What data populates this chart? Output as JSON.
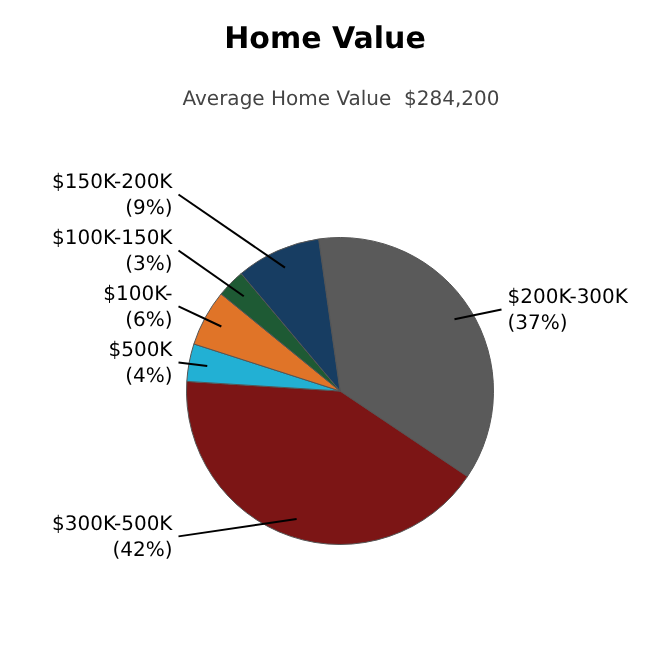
{
  "chart_data": {
    "type": "pie",
    "title": "Home Value",
    "subtitle": "Average Home Value  $284,200",
    "categories": [
      "$200K-300K",
      "$300K-500K",
      "$500K",
      "$100K-",
      "$100K-150K",
      "$150K-200K"
    ],
    "values": [
      37,
      42,
      4,
      6,
      3,
      9
    ],
    "value_labels": [
      "(37%)",
      "(42%)",
      "(4%)",
      "(6%)",
      "(3%)",
      "(9%)"
    ],
    "colors": [
      "#5a5a5a",
      "#7c1515",
      "#22b0d4",
      "#e07428",
      "#1e5a34",
      "#173d62"
    ]
  }
}
